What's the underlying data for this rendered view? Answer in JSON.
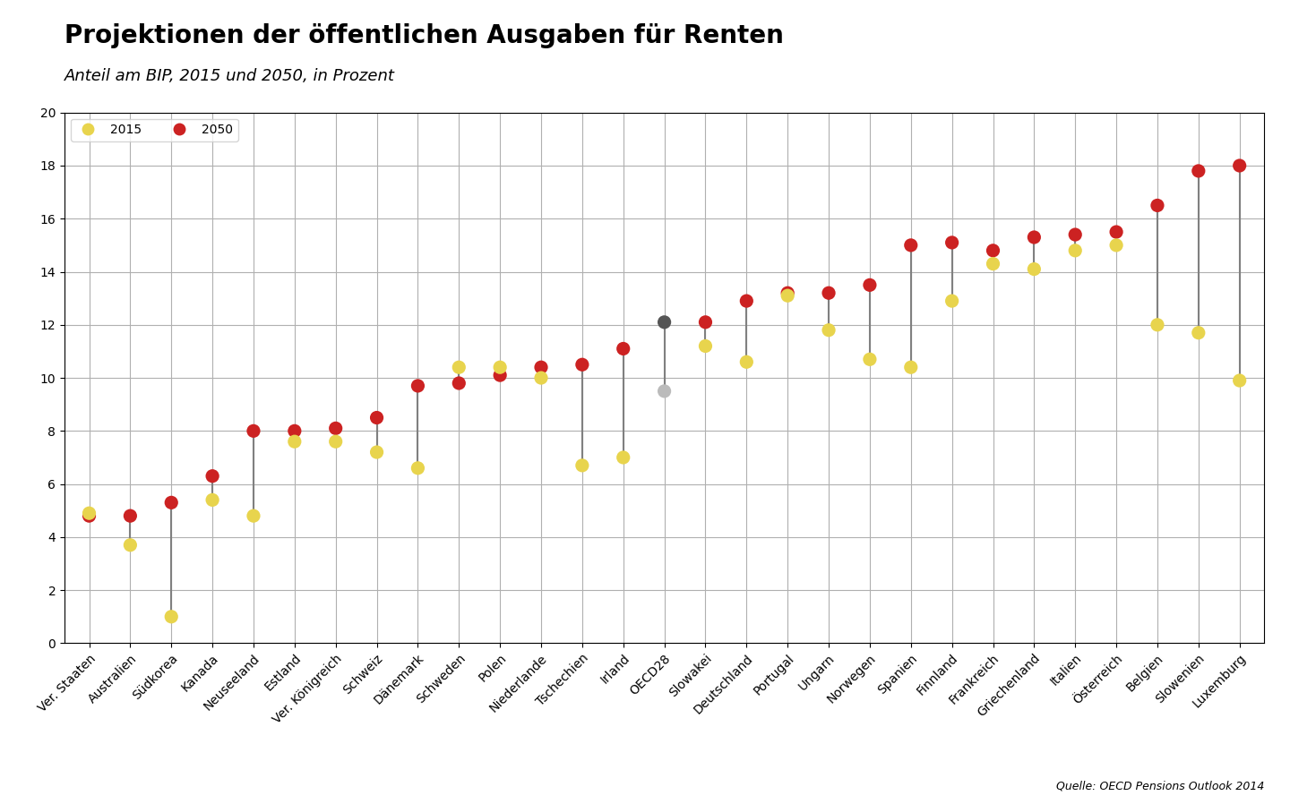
{
  "chart_data": {
    "type": "dumbbell",
    "title": "Projektionen der öffentlichen Ausgaben für Renten",
    "subtitle": "Anteil am BIP, 2015 und 2050, in Prozent",
    "source": "Quelle: OECD Pensions Outlook 2014",
    "categories": [
      "Ver. Staaten",
      "Australien",
      "Südkorea",
      "Kanada",
      "Neuseeland",
      "Estland",
      "Ver. Königreich",
      "Schweiz",
      "Dänemark",
      "Schweden",
      "Polen",
      "Niederlande",
      "Tschechien",
      "Irland",
      "OECD28",
      "Slowakei",
      "Deutschland",
      "Portugal",
      "Ungarn",
      "Norwegen",
      "Spanien",
      "Finnland",
      "Frankreich",
      "Griechenland",
      "Italien",
      "Österreich",
      "Belgien",
      "Slowenien",
      "Luxemburg"
    ],
    "series": [
      {
        "name": "2015",
        "color": "#e8d44d",
        "colors": [
          "#e8d44d",
          "#e8d44d",
          "#e8d44d",
          "#e8d44d",
          "#e8d44d",
          "#e8d44d",
          "#e8d44d",
          "#e8d44d",
          "#e8d44d",
          "#e8d44d",
          "#e8d44d",
          "#e8d44d",
          "#e8d44d",
          "#e8d44d",
          "#bbbbbb",
          "#e8d44d",
          "#e8d44d",
          "#e8d44d",
          "#e8d44d",
          "#e8d44d",
          "#e8d44d",
          "#e8d44d",
          "#e8d44d",
          "#e8d44d",
          "#e8d44d",
          "#e8d44d",
          "#e8d44d",
          "#e8d44d",
          "#e8d44d"
        ],
        "values": [
          4.9,
          3.7,
          1.0,
          5.4,
          4.8,
          7.6,
          7.6,
          7.2,
          6.6,
          10.4,
          10.4,
          10.0,
          6.7,
          7.0,
          9.5,
          11.2,
          10.6,
          13.1,
          11.8,
          10.7,
          10.4,
          12.9,
          14.3,
          14.1,
          14.8,
          15.0,
          12.0,
          11.7,
          9.9
        ]
      },
      {
        "name": "2050",
        "color": "#cc2222",
        "colors": [
          "#cc2222",
          "#cc2222",
          "#cc2222",
          "#cc2222",
          "#cc2222",
          "#cc2222",
          "#cc2222",
          "#cc2222",
          "#cc2222",
          "#cc2222",
          "#cc2222",
          "#cc2222",
          "#cc2222",
          "#cc2222",
          "#555555",
          "#cc2222",
          "#cc2222",
          "#cc2222",
          "#cc2222",
          "#cc2222",
          "#cc2222",
          "#cc2222",
          "#cc2222",
          "#cc2222",
          "#cc2222",
          "#cc2222",
          "#cc2222",
          "#cc2222",
          "#cc2222"
        ],
        "values": [
          4.8,
          4.8,
          5.3,
          6.3,
          8.0,
          8.0,
          8.1,
          8.5,
          9.7,
          9.8,
          10.1,
          10.4,
          10.5,
          11.1,
          12.1,
          12.1,
          12.9,
          13.2,
          13.2,
          13.5,
          15.0,
          15.1,
          14.8,
          15.3,
          15.4,
          15.5,
          16.5,
          17.8,
          18.0
        ]
      }
    ],
    "ylim": [
      0,
      20
    ],
    "yticks": [
      0,
      2,
      4,
      6,
      8,
      10,
      12,
      14,
      16,
      18,
      20
    ],
    "grid": true,
    "legend": "upper left"
  }
}
